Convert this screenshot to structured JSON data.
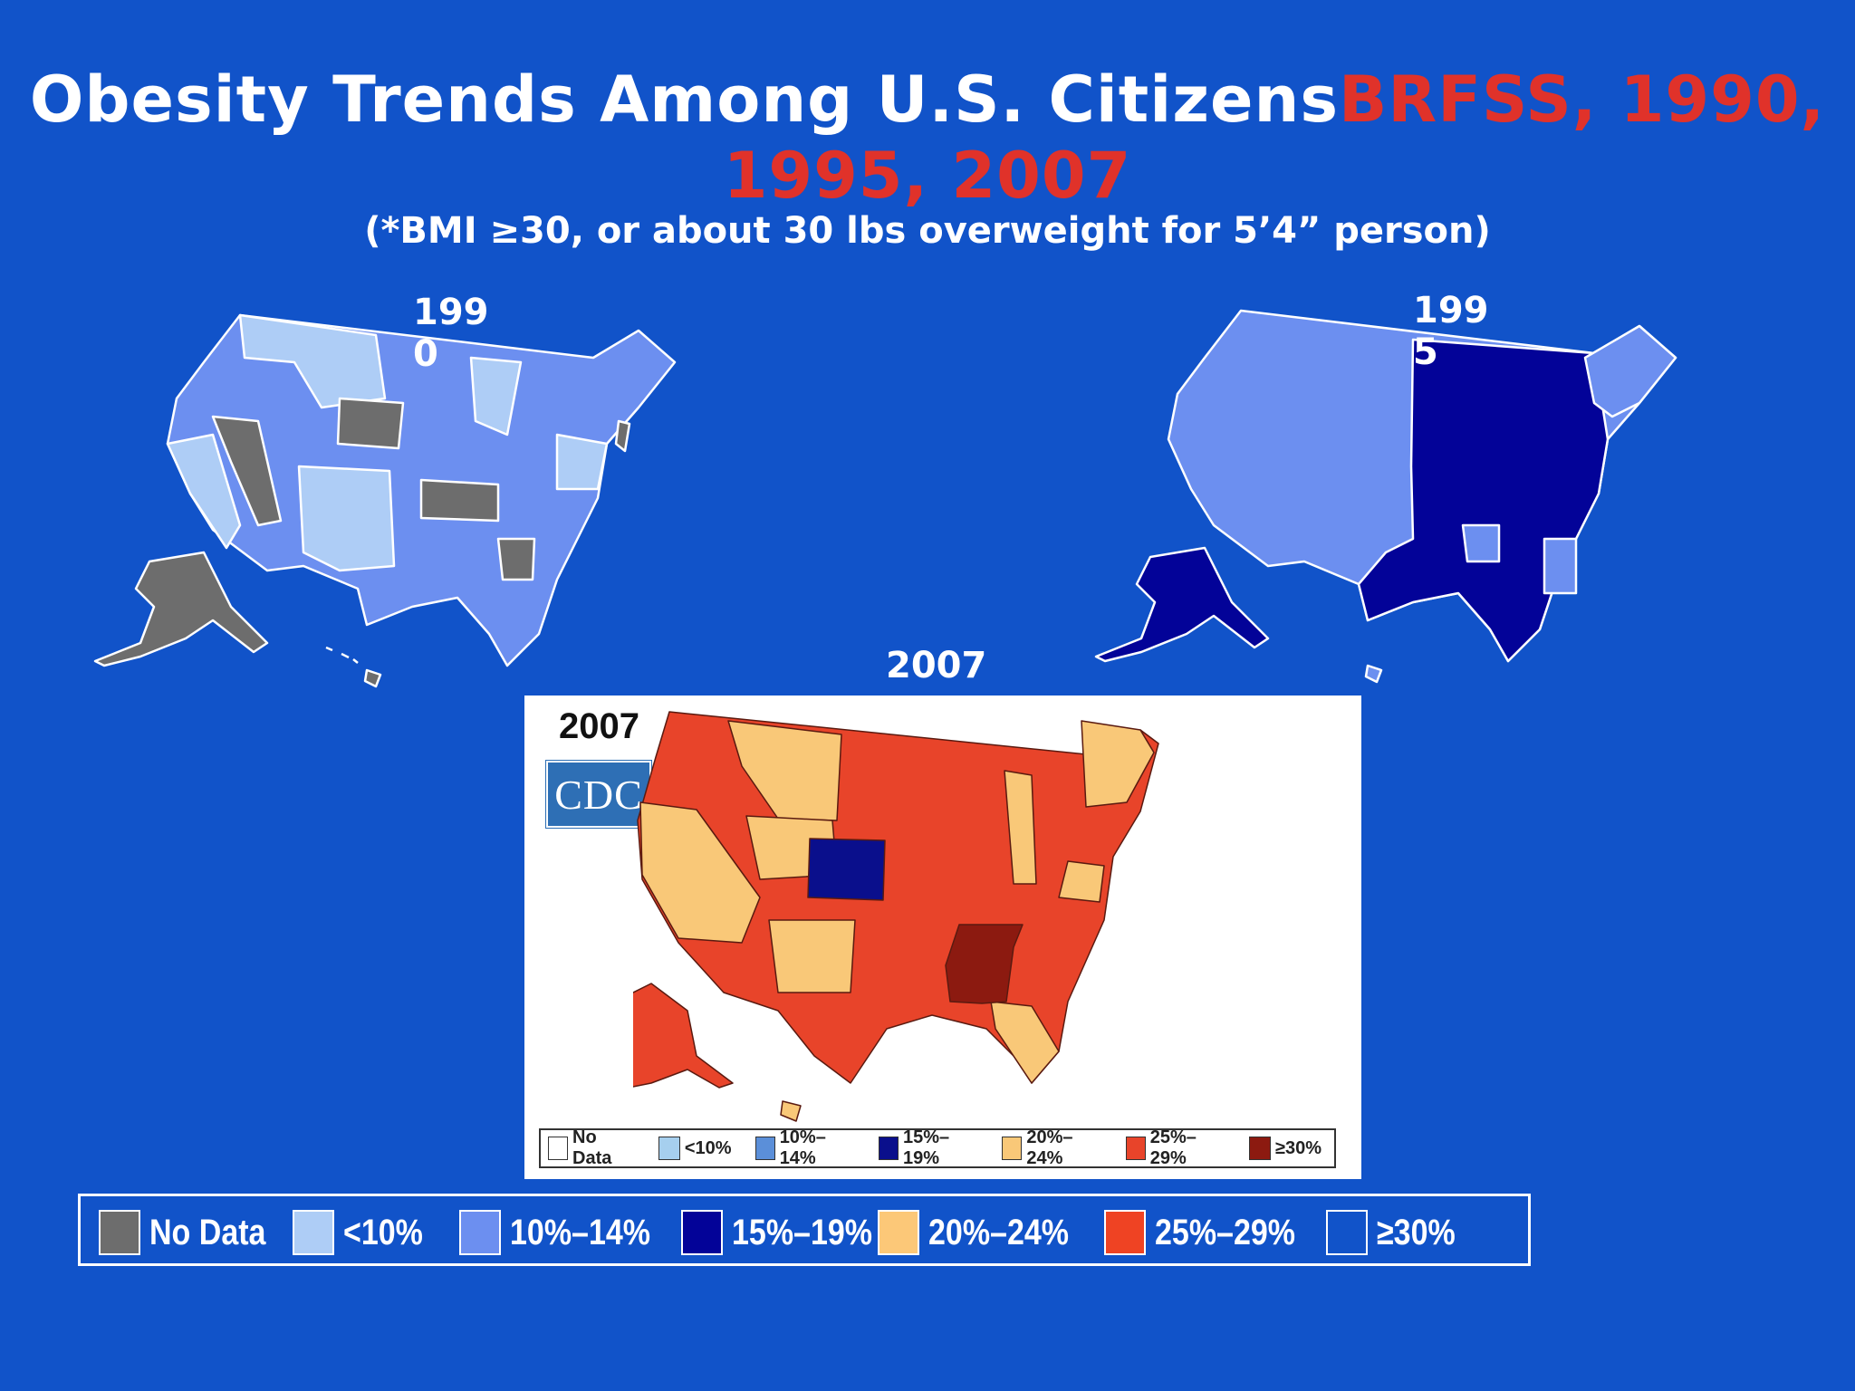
{
  "title": {
    "main": "Obesity Trends Among U.S. Citizens",
    "highlight": "BRFSS, 1990, 1995, 2007"
  },
  "subtitle": "(*BMI ≥30, or about 30 lbs overweight for 5’4” person)",
  "maps": {
    "y1990": {
      "line1": "199",
      "line2": "0"
    },
    "y1995": {
      "line1": "199",
      "line2": "5"
    },
    "y2007": {
      "label": "2007",
      "inset_year": "2007",
      "inset_logo": "CDC"
    }
  },
  "inset_legend": [
    {
      "label": "No Data",
      "color": "#ffffff"
    },
    {
      "label": "<10%",
      "color": "#a6cfee"
    },
    {
      "label": "10%–14%",
      "color": "#5b8fd9"
    },
    {
      "label": "15%–19%",
      "color": "#0a0f8c"
    },
    {
      "label": "20%–24%",
      "color": "#f9c878"
    },
    {
      "label": "25%–29%",
      "color": "#e8442a"
    },
    {
      "label": "≥30%",
      "color": "#8c1a10"
    }
  ],
  "legend": [
    {
      "label": "No Data",
      "color": "#6d6d6d"
    },
    {
      "label": "<10%",
      "color": "#aecdf6"
    },
    {
      "label": "10%–14%",
      "color": "#6c8ff0"
    },
    {
      "label": "15%–19%",
      "color": "#030398"
    },
    {
      "label": "20%–24%",
      "color": "#fcc878"
    },
    {
      "label": "25%–29%",
      "color": "#ef4323"
    },
    {
      "label": "≥30%",
      "color": "#1153c9"
    }
  ]
}
